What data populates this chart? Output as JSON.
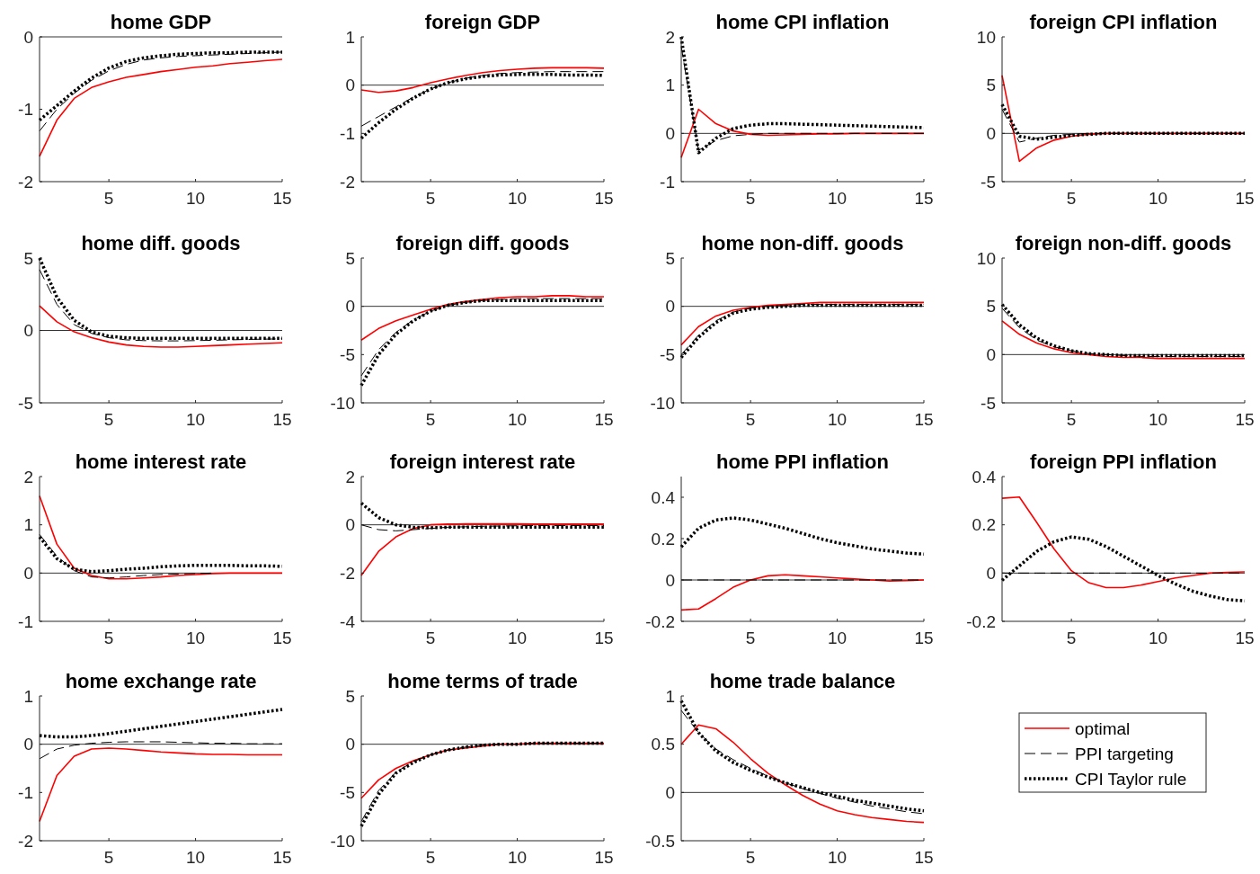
{
  "chart_data": [
    {
      "type": "line",
      "title": "home GDP",
      "x": [
        1,
        2,
        3,
        4,
        5,
        6,
        7,
        8,
        9,
        10,
        11,
        12,
        13,
        14,
        15
      ],
      "xlim": [
        1,
        15
      ],
      "xticks": [
        5,
        10,
        15
      ],
      "ylim": [
        -2,
        0
      ],
      "yticks": [
        -2,
        -1,
        0
      ],
      "grid": false,
      "legend": false,
      "ref_lines": [
        {
          "axis": "y",
          "value": 0,
          "color": "#000000"
        }
      ],
      "series": [
        {
          "color": "#ff0000",
          "line_style": "solid",
          "values": [
            -1.65,
            -1.15,
            -0.85,
            -0.7,
            -0.62,
            -0.56,
            -0.52,
            -0.48,
            -0.45,
            -0.42,
            -0.4,
            -0.37,
            -0.35,
            -0.33,
            -0.31
          ]
        },
        {
          "color": "#000000",
          "line_style": "dashed",
          "values": [
            -1.3,
            -1.0,
            -0.78,
            -0.6,
            -0.47,
            -0.38,
            -0.32,
            -0.29,
            -0.27,
            -0.26,
            -0.25,
            -0.24,
            -0.23,
            -0.22,
            -0.21
          ]
        },
        {
          "color": "#000000",
          "line_style": "dotted",
          "values": [
            -1.15,
            -0.95,
            -0.75,
            -0.57,
            -0.43,
            -0.34,
            -0.29,
            -0.26,
            -0.24,
            -0.23,
            -0.22,
            -0.22,
            -0.21,
            -0.21,
            -0.21
          ]
        }
      ]
    },
    {
      "type": "line",
      "title": "foreign GDP",
      "x": [
        1,
        2,
        3,
        4,
        5,
        6,
        7,
        8,
        9,
        10,
        11,
        12,
        13,
        14,
        15
      ],
      "xlim": [
        1,
        15
      ],
      "xticks": [
        5,
        10,
        15
      ],
      "ylim": [
        -2,
        1
      ],
      "yticks": [
        -2,
        -1,
        0,
        1
      ],
      "grid": false,
      "legend": false,
      "ref_lines": [
        {
          "axis": "y",
          "value": 0,
          "color": "#000000"
        }
      ],
      "series": [
        {
          "color": "#ff0000",
          "line_style": "solid",
          "values": [
            -0.1,
            -0.15,
            -0.12,
            -0.05,
            0.05,
            0.13,
            0.2,
            0.26,
            0.3,
            0.33,
            0.35,
            0.36,
            0.36,
            0.36,
            0.35
          ]
        },
        {
          "color": "#000000",
          "line_style": "dashed",
          "values": [
            -0.85,
            -0.65,
            -0.45,
            -0.25,
            -0.08,
            0.05,
            0.14,
            0.2,
            0.24,
            0.26,
            0.27,
            0.28,
            0.28,
            0.28,
            0.28
          ]
        },
        {
          "color": "#000000",
          "line_style": "dotted",
          "values": [
            -1.1,
            -0.78,
            -0.5,
            -0.27,
            -0.08,
            0.05,
            0.13,
            0.18,
            0.21,
            0.22,
            0.22,
            0.22,
            0.21,
            0.21,
            0.2
          ]
        }
      ]
    },
    {
      "type": "line",
      "title": "home CPI inflation",
      "x": [
        1,
        2,
        3,
        4,
        5,
        6,
        7,
        8,
        9,
        10,
        11,
        12,
        13,
        14,
        15
      ],
      "xlim": [
        1,
        15
      ],
      "xticks": [
        5,
        10,
        15
      ],
      "ylim": [
        -1,
        2
      ],
      "yticks": [
        -1,
        0,
        1,
        2
      ],
      "grid": false,
      "legend": false,
      "ref_lines": [
        {
          "axis": "y",
          "value": 0,
          "color": "#000000"
        }
      ],
      "series": [
        {
          "color": "#ff0000",
          "line_style": "solid",
          "values": [
            -0.5,
            0.5,
            0.2,
            0.05,
            -0.02,
            -0.04,
            -0.03,
            -0.02,
            -0.01,
            -0.01,
            0,
            0,
            0,
            0,
            0
          ]
        },
        {
          "color": "#000000",
          "line_style": "dashed",
          "values": [
            1.8,
            -0.35,
            -0.15,
            -0.05,
            -0.02,
            0,
            0,
            0,
            0,
            null,
            null,
            null,
            null,
            0,
            0
          ]
        },
        {
          "color": "#000000",
          "line_style": "dotted",
          "values": [
            2.0,
            -0.4,
            -0.1,
            0.1,
            0.17,
            0.2,
            0.2,
            0.19,
            0.18,
            0.17,
            0.16,
            0.15,
            0.14,
            0.13,
            0.12
          ]
        }
      ]
    },
    {
      "type": "line",
      "title": "foreign CPI inflation",
      "x": [
        1,
        2,
        3,
        4,
        5,
        6,
        7,
        8,
        9,
        10,
        11,
        12,
        13,
        14,
        15
      ],
      "xlim": [
        1,
        15
      ],
      "xticks": [
        5,
        10,
        15
      ],
      "ylim": [
        -5,
        10
      ],
      "yticks": [
        -5,
        0,
        5,
        10
      ],
      "grid": false,
      "legend": false,
      "ref_lines": [
        {
          "axis": "y",
          "value": 0,
          "color": "#000000"
        }
      ],
      "series": [
        {
          "color": "#ff0000",
          "line_style": "solid",
          "values": [
            6,
            -2.9,
            -1.5,
            -0.7,
            -0.3,
            -0.1,
            0,
            0,
            0,
            0,
            0,
            0,
            0,
            0,
            0
          ]
        },
        {
          "color": "#000000",
          "line_style": "dashed",
          "values": [
            2.5,
            -0.9,
            -0.5,
            -0.2,
            -0.1,
            0,
            0,
            0,
            0,
            0,
            0,
            0,
            0,
            0,
            0
          ]
        },
        {
          "color": "#000000",
          "line_style": "dotted",
          "values": [
            3,
            -0.3,
            -0.6,
            -0.4,
            -0.2,
            -0.1,
            0,
            0,
            0,
            0,
            0,
            0,
            0,
            0,
            0
          ]
        }
      ]
    },
    {
      "type": "line",
      "title": "home diff. goods",
      "x": [
        1,
        2,
        3,
        4,
        5,
        6,
        7,
        8,
        9,
        10,
        11,
        12,
        13,
        14,
        15
      ],
      "xlim": [
        1,
        15
      ],
      "xticks": [
        5,
        10,
        15
      ],
      "ylim": [
        -5,
        5
      ],
      "yticks": [
        -5,
        0,
        5
      ],
      "grid": false,
      "legend": false,
      "ref_lines": [
        {
          "axis": "y",
          "value": 0,
          "color": "#000000"
        }
      ],
      "series": [
        {
          "color": "#ff0000",
          "line_style": "solid",
          "values": [
            1.7,
            0.6,
            -0.1,
            -0.5,
            -0.8,
            -1.0,
            -1.1,
            -1.15,
            -1.15,
            -1.1,
            -1.05,
            -1.0,
            -0.95,
            -0.9,
            -0.85
          ]
        },
        {
          "color": "#000000",
          "line_style": "dashed",
          "values": [
            4.2,
            1.8,
            0.4,
            -0.2,
            -0.5,
            -0.65,
            -0.7,
            -0.72,
            -0.72,
            -0.7,
            -0.68,
            -0.65,
            -0.62,
            -0.6,
            -0.58
          ]
        },
        {
          "color": "#000000",
          "line_style": "dotted",
          "values": [
            5,
            2.3,
            0.7,
            -0.1,
            -0.4,
            -0.5,
            -0.55,
            -0.55,
            -0.55,
            -0.55,
            -0.55,
            -0.55,
            -0.55,
            -0.55,
            -0.55
          ]
        }
      ]
    },
    {
      "type": "line",
      "title": "foreign diff. goods",
      "x": [
        1,
        2,
        3,
        4,
        5,
        6,
        7,
        8,
        9,
        10,
        11,
        12,
        13,
        14,
        15
      ],
      "xlim": [
        1,
        15
      ],
      "xticks": [
        5,
        10,
        15
      ],
      "ylim": [
        -10,
        5
      ],
      "yticks": [
        -10,
        -5,
        0,
        5
      ],
      "grid": false,
      "legend": false,
      "ref_lines": [
        {
          "axis": "y",
          "value": 0,
          "color": "#000000"
        }
      ],
      "series": [
        {
          "color": "#ff0000",
          "line_style": "solid",
          "values": [
            -3.5,
            -2.3,
            -1.5,
            -0.9,
            -0.3,
            0.2,
            0.5,
            0.7,
            0.9,
            1.0,
            1.0,
            1.1,
            1.1,
            1.0,
            1.0
          ]
        },
        {
          "color": "#000000",
          "line_style": "dashed",
          "values": [
            -7.2,
            -4.5,
            -2.7,
            -1.4,
            -0.5,
            0.1,
            0.4,
            0.6,
            0.7,
            0.8,
            0.8,
            0.8,
            0.8,
            0.8,
            0.8
          ]
        },
        {
          "color": "#000000",
          "line_style": "dotted",
          "values": [
            -8.2,
            -5,
            -2.9,
            -1.5,
            -0.5,
            0.1,
            0.4,
            0.6,
            0.6,
            0.6,
            0.6,
            0.6,
            0.6,
            0.6,
            0.6
          ]
        }
      ]
    },
    {
      "type": "line",
      "title": "home non-diff. goods",
      "x": [
        1,
        2,
        3,
        4,
        5,
        6,
        7,
        8,
        9,
        10,
        11,
        12,
        13,
        14,
        15
      ],
      "xlim": [
        1,
        15
      ],
      "xticks": [
        5,
        10,
        15
      ],
      "ylim": [
        -10,
        5
      ],
      "yticks": [
        -10,
        -5,
        0,
        5
      ],
      "grid": false,
      "legend": false,
      "ref_lines": [
        {
          "axis": "y",
          "value": 0,
          "color": "#000000"
        }
      ],
      "series": [
        {
          "color": "#ff0000",
          "line_style": "solid",
          "values": [
            -4,
            -2.1,
            -1.0,
            -0.4,
            -0.1,
            0.1,
            0.2,
            0.3,
            0.4,
            0.4,
            0.4,
            0.4,
            0.4,
            0.4,
            0.4
          ]
        },
        {
          "color": "#000000",
          "line_style": "dashed",
          "values": [
            -5,
            -3,
            -1.5,
            -0.6,
            -0.2,
            0,
            0.1,
            0.2,
            0.2,
            0.2,
            0.2,
            0.2,
            0.2,
            0.2,
            0.2
          ]
        },
        {
          "color": "#000000",
          "line_style": "dotted",
          "values": [
            -5.3,
            -3.2,
            -1.7,
            -0.7,
            -0.3,
            -0.1,
            0,
            0.1,
            0.1,
            0.1,
            0.1,
            0.1,
            0.1,
            0.1,
            0.1
          ]
        }
      ]
    },
    {
      "type": "line",
      "title": "foreign non-diff. goods",
      "x": [
        1,
        2,
        3,
        4,
        5,
        6,
        7,
        8,
        9,
        10,
        11,
        12,
        13,
        14,
        15
      ],
      "xlim": [
        1,
        15
      ],
      "xticks": [
        5,
        10,
        15
      ],
      "ylim": [
        -5,
        10
      ],
      "yticks": [
        -5,
        0,
        5,
        10
      ],
      "grid": false,
      "legend": false,
      "ref_lines": [
        {
          "axis": "y",
          "value": 0,
          "color": "#000000"
        }
      ],
      "series": [
        {
          "color": "#ff0000",
          "line_style": "solid",
          "values": [
            3.5,
            2.1,
            1.2,
            0.6,
            0.2,
            0,
            -0.2,
            -0.3,
            -0.3,
            -0.4,
            -0.4,
            -0.4,
            -0.4,
            -0.4,
            -0.4
          ]
        },
        {
          "color": "#000000",
          "line_style": "dashed",
          "values": [
            4.8,
            2.8,
            1.5,
            0.8,
            0.4,
            0.1,
            0,
            -0.1,
            -0.2,
            -0.2,
            -0.2,
            -0.2,
            -0.2,
            -0.2,
            -0.2
          ]
        },
        {
          "color": "#000000",
          "line_style": "dotted",
          "values": [
            5.2,
            3.1,
            1.7,
            0.9,
            0.4,
            0.1,
            0,
            -0.1,
            -0.1,
            -0.1,
            -0.1,
            -0.1,
            -0.1,
            -0.1,
            -0.1
          ]
        }
      ]
    },
    {
      "type": "line",
      "title": "home interest rate",
      "x": [
        1,
        2,
        3,
        4,
        5,
        6,
        7,
        8,
        9,
        10,
        11,
        12,
        13,
        14,
        15
      ],
      "xlim": [
        1,
        15
      ],
      "xticks": [
        5,
        10,
        15
      ],
      "ylim": [
        -1,
        2
      ],
      "yticks": [
        -1,
        0,
        1,
        2
      ],
      "grid": false,
      "legend": false,
      "ref_lines": [
        {
          "axis": "y",
          "value": 0,
          "color": "#000000"
        }
      ],
      "series": [
        {
          "color": "#ff0000",
          "line_style": "solid",
          "values": [
            1.6,
            0.6,
            0.1,
            -0.05,
            -0.12,
            -0.12,
            -0.1,
            -0.08,
            -0.05,
            -0.03,
            -0.01,
            0,
            0,
            0,
            0
          ]
        },
        {
          "color": "#000000",
          "line_style": "dashed",
          "values": [
            0.8,
            0.35,
            0.05,
            -0.08,
            -0.1,
            -0.08,
            -0.05,
            -0.03,
            -0.02,
            -0.01,
            0,
            null,
            null,
            null,
            null
          ]
        },
        {
          "color": "#000000",
          "line_style": "dotted",
          "values": [
            0.75,
            0.3,
            0.08,
            0.03,
            0.05,
            0.08,
            0.1,
            0.13,
            0.15,
            0.16,
            0.16,
            0.16,
            0.15,
            0.15,
            0.14
          ]
        }
      ]
    },
    {
      "type": "line",
      "title": "foreign interest rate",
      "x": [
        1,
        2,
        3,
        4,
        5,
        6,
        7,
        8,
        9,
        10,
        11,
        12,
        13,
        14,
        15
      ],
      "xlim": [
        1,
        15
      ],
      "xticks": [
        5,
        10,
        15
      ],
      "ylim": [
        -4,
        2
      ],
      "yticks": [
        -4,
        -2,
        0,
        2
      ],
      "grid": false,
      "legend": false,
      "ref_lines": [
        {
          "axis": "y",
          "value": 0,
          "color": "#000000"
        }
      ],
      "series": [
        {
          "color": "#ff0000",
          "line_style": "solid",
          "values": [
            -2.1,
            -1.1,
            -0.5,
            -0.15,
            0,
            0.03,
            0.04,
            0.04,
            0.04,
            0.04,
            0.03,
            0.03,
            0.03,
            0.03,
            0.03
          ]
        },
        {
          "color": "#000000",
          "line_style": "dashed",
          "values": [
            0,
            -0.2,
            -0.25,
            -0.2,
            -0.15,
            -0.1,
            -0.08,
            -0.06,
            -0.05,
            -0.04,
            -0.03,
            -0.03,
            -0.03,
            -0.03,
            -0.03
          ]
        },
        {
          "color": "#000000",
          "line_style": "dotted",
          "values": [
            0.9,
            0.3,
            0,
            -0.1,
            -0.12,
            -0.1,
            -0.1,
            -0.1,
            -0.1,
            -0.1,
            -0.1,
            -0.1,
            -0.1,
            -0.1,
            -0.1
          ]
        }
      ]
    },
    {
      "type": "line",
      "title": "home PPI inflation",
      "x": [
        1,
        2,
        3,
        4,
        5,
        6,
        7,
        8,
        9,
        10,
        11,
        12,
        13,
        14,
        15
      ],
      "xlim": [
        1,
        15
      ],
      "xticks": [
        5,
        10,
        15
      ],
      "ylim": [
        -0.2,
        0.5
      ],
      "yticks": [
        -0.2,
        0,
        0.2,
        0.4
      ],
      "grid": false,
      "legend": false,
      "ref_lines": [
        {
          "axis": "y",
          "value": 0,
          "color": "#000000"
        }
      ],
      "series": [
        {
          "color": "#ff0000",
          "line_style": "solid",
          "values": [
            -0.145,
            -0.14,
            -0.09,
            -0.035,
            0,
            0.02,
            0.025,
            0.02,
            0.015,
            0.01,
            0.005,
            0,
            -0.005,
            -0.003,
            0
          ]
        },
        {
          "color": "#000000",
          "line_style": "dashed",
          "values": [
            0,
            0,
            0,
            0,
            0,
            0,
            0,
            0,
            0,
            0,
            0,
            0,
            0,
            0,
            0
          ]
        },
        {
          "color": "#000000",
          "line_style": "dotted",
          "values": [
            0.16,
            0.25,
            0.29,
            0.3,
            0.29,
            0.27,
            0.25,
            0.225,
            0.2,
            0.18,
            0.165,
            0.15,
            0.14,
            0.13,
            0.125
          ]
        }
      ]
    },
    {
      "type": "line",
      "title": "foreign PPI inflation",
      "x": [
        1,
        2,
        3,
        4,
        5,
        6,
        7,
        8,
        9,
        10,
        11,
        12,
        13,
        14,
        15
      ],
      "xlim": [
        1,
        15
      ],
      "xticks": [
        5,
        10,
        15
      ],
      "ylim": [
        -0.2,
        0.4
      ],
      "yticks": [
        -0.2,
        0,
        0.2,
        0.4
      ],
      "grid": false,
      "legend": false,
      "ref_lines": [
        {
          "axis": "y",
          "value": 0,
          "color": "#000000"
        }
      ],
      "series": [
        {
          "color": "#ff0000",
          "line_style": "solid",
          "values": [
            0.31,
            0.315,
            0.21,
            0.1,
            0.01,
            -0.04,
            -0.06,
            -0.06,
            -0.05,
            -0.035,
            -0.02,
            -0.01,
            0,
            0.003,
            0.005
          ]
        },
        {
          "color": "#000000",
          "line_style": "dashed",
          "values": [
            0,
            0,
            0,
            0,
            0,
            0,
            0,
            0,
            0,
            0,
            0,
            0,
            0,
            0,
            0
          ]
        },
        {
          "color": "#000000",
          "line_style": "dotted",
          "values": [
            -0.03,
            0.03,
            0.09,
            0.13,
            0.15,
            0.14,
            0.11,
            0.07,
            0.03,
            -0.01,
            -0.045,
            -0.075,
            -0.095,
            -0.11,
            -0.115
          ]
        }
      ]
    },
    {
      "type": "line",
      "title": "home exchange rate",
      "x": [
        1,
        2,
        3,
        4,
        5,
        6,
        7,
        8,
        9,
        10,
        11,
        12,
        13,
        14,
        15
      ],
      "xlim": [
        1,
        15
      ],
      "xticks": [
        5,
        10,
        15
      ],
      "ylim": [
        -2,
        1
      ],
      "yticks": [
        -2,
        -1,
        0,
        1
      ],
      "grid": false,
      "legend": false,
      "ref_lines": [
        {
          "axis": "y",
          "value": 0,
          "color": "#000000"
        }
      ],
      "series": [
        {
          "color": "#ff0000",
          "line_style": "solid",
          "values": [
            -1.6,
            -0.65,
            -0.25,
            -0.1,
            -0.08,
            -0.1,
            -0.13,
            -0.16,
            -0.18,
            -0.2,
            -0.21,
            -0.21,
            -0.22,
            -0.22,
            -0.22
          ]
        },
        {
          "color": "#000000",
          "line_style": "dashed",
          "values": [
            -0.3,
            -0.1,
            -0.02,
            0.02,
            0.04,
            0.05,
            0.05,
            0.05,
            0.04,
            0.03,
            0.02,
            0.02,
            0.01,
            0.01,
            0.01
          ]
        },
        {
          "color": "#000000",
          "line_style": "dotted",
          "values": [
            0.18,
            0.15,
            0.15,
            0.18,
            0.22,
            0.27,
            0.32,
            0.37,
            0.42,
            0.47,
            0.52,
            0.57,
            0.62,
            0.67,
            0.72
          ]
        }
      ]
    },
    {
      "type": "line",
      "title": "home terms of trade",
      "x": [
        1,
        2,
        3,
        4,
        5,
        6,
        7,
        8,
        9,
        10,
        11,
        12,
        13,
        14,
        15
      ],
      "xlim": [
        1,
        15
      ],
      "xticks": [
        5,
        10,
        15
      ],
      "ylim": [
        -10,
        5
      ],
      "yticks": [
        -10,
        -5,
        0,
        5
      ],
      "grid": false,
      "legend": false,
      "ref_lines": [
        {
          "axis": "y",
          "value": 0,
          "color": "#000000"
        }
      ],
      "series": [
        {
          "color": "#ff0000",
          "line_style": "solid",
          "values": [
            -5.6,
            -3.7,
            -2.5,
            -1.7,
            -1.1,
            -0.6,
            -0.4,
            -0.2,
            0,
            0,
            0.1,
            0.1,
            0.1,
            0.1,
            0.1
          ]
        },
        {
          "color": "#000000",
          "line_style": "dashed",
          "values": [
            -8,
            -4.8,
            -2.9,
            -1.8,
            -1.1,
            -0.6,
            -0.3,
            -0.1,
            0,
            0,
            0.1,
            0.1,
            0.1,
            0.1,
            0.1
          ]
        },
        {
          "color": "#000000",
          "line_style": "dotted",
          "values": [
            -8.5,
            -5.2,
            -3,
            -1.9,
            -1.1,
            -0.6,
            -0.3,
            -0.1,
            0,
            0,
            0.1,
            0.1,
            0.1,
            0.1,
            0.1
          ]
        }
      ]
    },
    {
      "type": "line",
      "title": "home trade balance",
      "x": [
        1,
        2,
        3,
        4,
        5,
        6,
        7,
        8,
        9,
        10,
        11,
        12,
        13,
        14,
        15
      ],
      "xlim": [
        1,
        15
      ],
      "xticks": [
        5,
        10,
        15
      ],
      "ylim": [
        -0.5,
        1
      ],
      "yticks": [
        -0.5,
        0,
        0.5,
        1
      ],
      "grid": false,
      "legend": "right",
      "ref_lines": [
        {
          "axis": "y",
          "value": 0,
          "color": "#000000"
        }
      ],
      "series": [
        {
          "name": "optimal",
          "color": "#ff0000",
          "line_style": "solid",
          "values": [
            0.5,
            0.7,
            0.66,
            0.52,
            0.35,
            0.2,
            0.08,
            -0.03,
            -0.12,
            -0.19,
            -0.23,
            -0.26,
            -0.28,
            -0.3,
            -0.31
          ]
        },
        {
          "name": "PPI targeting",
          "color": "#000000",
          "line_style": "dashed",
          "values": [
            0.85,
            0.62,
            0.45,
            0.34,
            0.25,
            0.17,
            0.1,
            0.04,
            -0.01,
            -0.06,
            -0.1,
            -0.14,
            -0.17,
            -0.2,
            -0.22
          ]
        },
        {
          "name": "CPI Taylor rule",
          "color": "#000000",
          "line_style": "dotted",
          "values": [
            0.95,
            0.62,
            0.43,
            0.31,
            0.23,
            0.16,
            0.1,
            0.05,
            0,
            -0.04,
            -0.08,
            -0.11,
            -0.14,
            -0.17,
            -0.19
          ]
        }
      ]
    }
  ]
}
